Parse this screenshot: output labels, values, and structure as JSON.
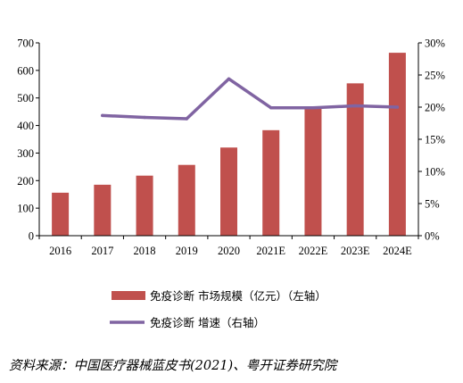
{
  "chart_data": {
    "type": "bar",
    "categories": [
      "2016",
      "2017",
      "2018",
      "2019",
      "2020",
      "2021E",
      "2022E",
      "2023E",
      "2024E"
    ],
    "series": [
      {
        "name": "免疫诊断 市场规模（亿元）（左轴）",
        "type": "bar",
        "axis": "left",
        "color": "#c0504d",
        "values": [
          156,
          185,
          218,
          257,
          320,
          383,
          462,
          553,
          664
        ]
      },
      {
        "name": "免疫诊断 增速（右轴）",
        "type": "line",
        "axis": "right",
        "color": "#8064a2",
        "values": [
          null,
          18.7,
          18.4,
          18.2,
          24.4,
          19.9,
          19.9,
          20.2,
          20.0
        ]
      }
    ],
    "left_axis": {
      "ylim": [
        0,
        700
      ],
      "ticks": [
        "0",
        "100",
        "200",
        "300",
        "400",
        "500",
        "600",
        "700"
      ]
    },
    "right_axis": {
      "ylim": [
        0,
        30
      ],
      "ticks": [
        "0%",
        "5%",
        "10%",
        "15%",
        "20%",
        "25%",
        "30%"
      ]
    },
    "grid": false,
    "legend_placement": "bottom"
  },
  "source_note": "资料来源：中国医疗器械蓝皮书(2021)、粤开证券研究院"
}
